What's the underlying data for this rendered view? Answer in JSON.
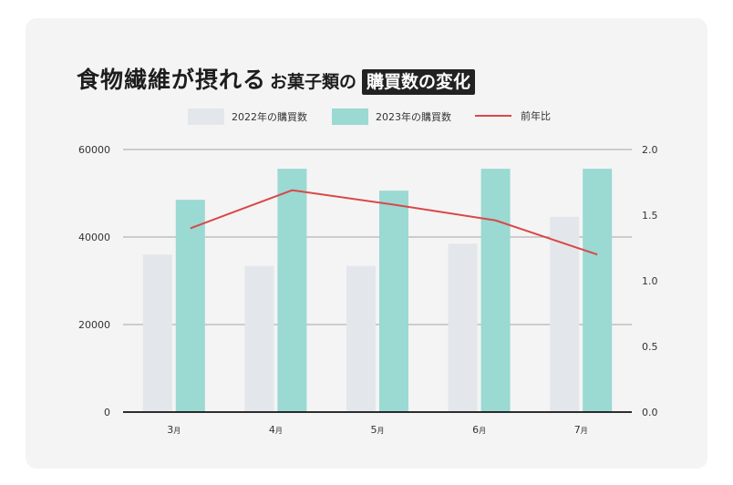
{
  "title": {
    "main": "食物繊維が摂れる",
    "sub": "お菓子類の",
    "highlight": "購買数の変化"
  },
  "legend": {
    "series_2022": "2022年の購買数",
    "series_2023": "2023年の購買数",
    "ratio": "前年比"
  },
  "colors": {
    "bar_2022": "#e3e7eb",
    "bar_2023": "#9bd9d3",
    "line_ratio": "#d94848",
    "grid": "#b5b5b5"
  },
  "chart_data": {
    "type": "bar",
    "categories": [
      "3月",
      "4月",
      "5月",
      "6月",
      "7月"
    ],
    "series": [
      {
        "name": "2022年の購買数",
        "type": "bar",
        "axis": "left",
        "values": [
          36000,
          33400,
          33400,
          38500,
          44600
        ]
      },
      {
        "name": "2023年の購買数",
        "type": "bar",
        "axis": "left",
        "values": [
          48500,
          55600,
          50600,
          55600,
          55600
        ]
      },
      {
        "name": "前年比",
        "type": "line",
        "axis": "right",
        "values": [
          1.4,
          1.69,
          1.58,
          1.46,
          1.2
        ]
      }
    ],
    "y_left": {
      "min": 0,
      "max": 60000,
      "ticks": [
        "0",
        "20000",
        "40000",
        "60000"
      ],
      "tick_values": [
        0,
        20000,
        40000,
        60000
      ]
    },
    "y_right": {
      "min": 0,
      "max": 2.0,
      "ticks": [
        "0.0",
        "0.5",
        "1.0",
        "1.5",
        "2.0"
      ],
      "tick_values": [
        0,
        0.5,
        1.0,
        1.5,
        2.0
      ]
    },
    "grid": true,
    "legend_position": "top"
  }
}
